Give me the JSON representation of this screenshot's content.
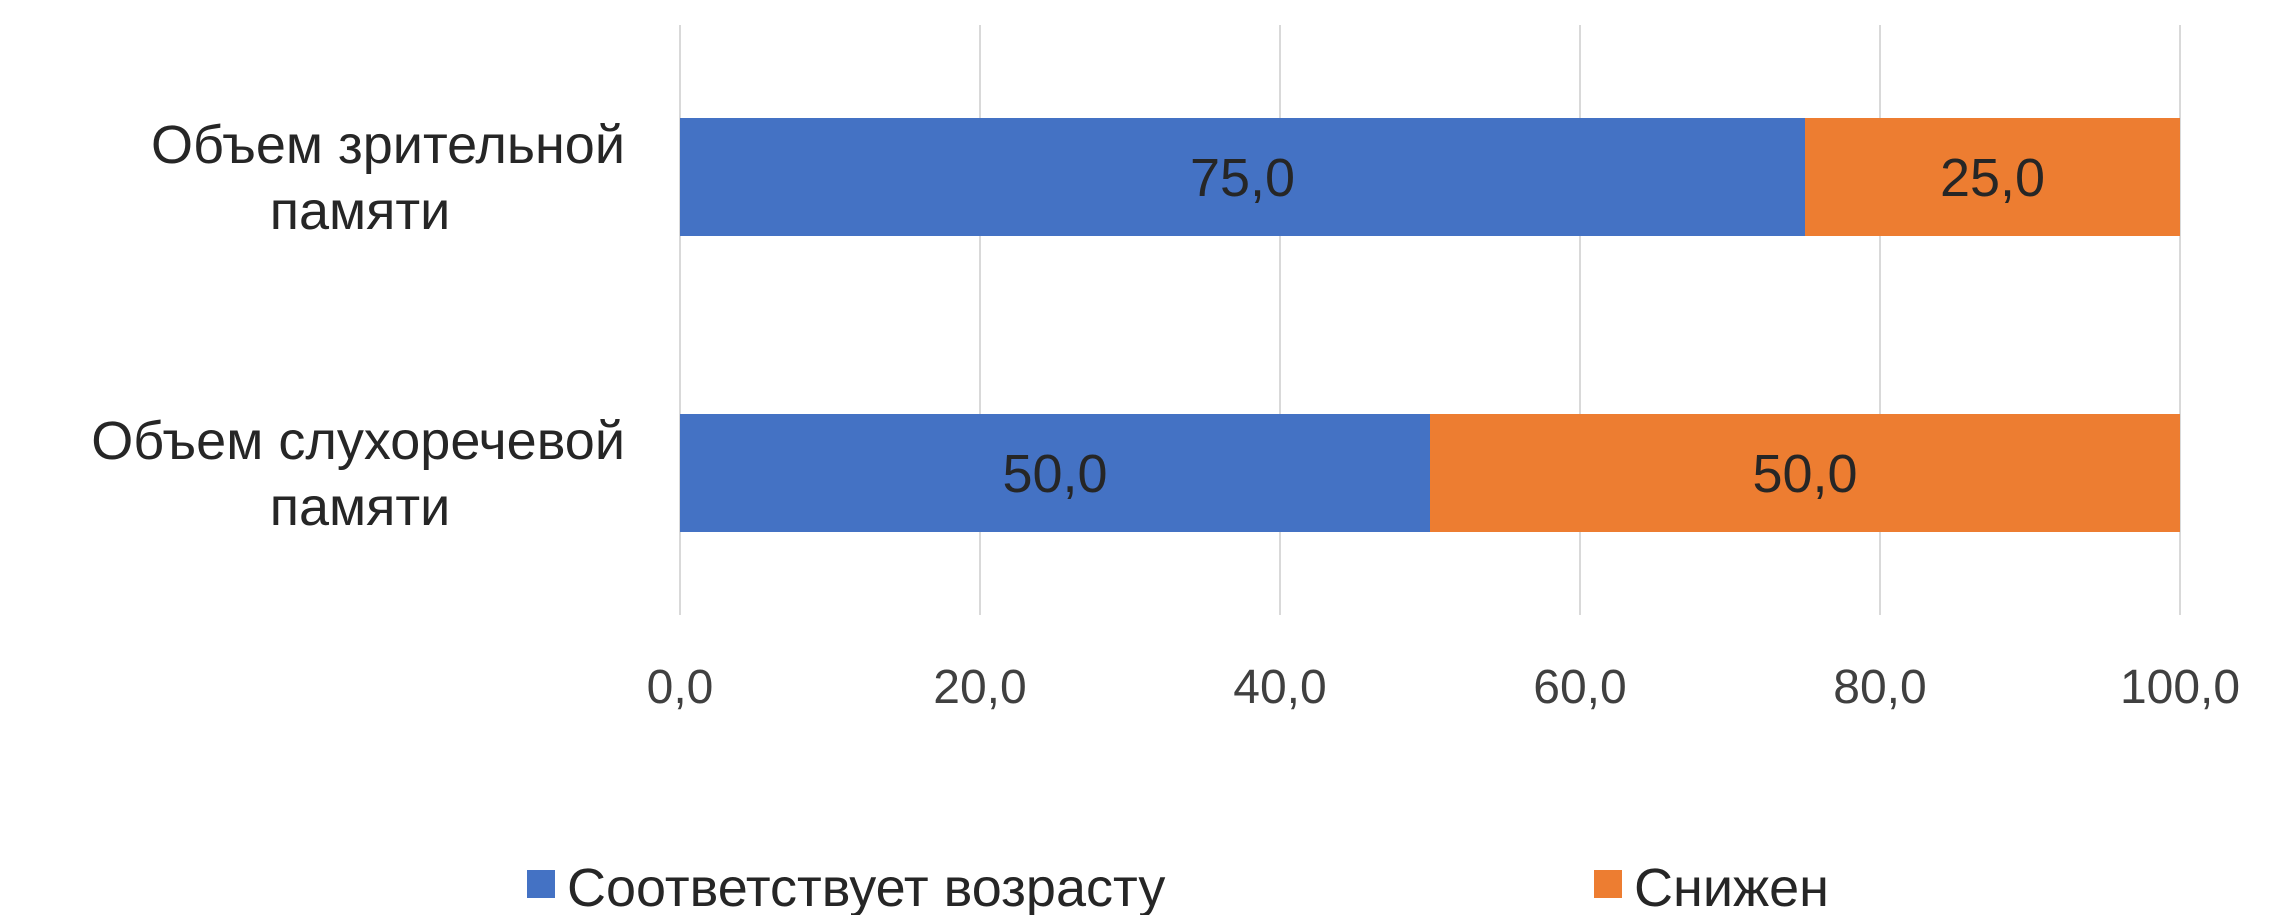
{
  "chart_data": {
    "type": "bar",
    "orientation": "horizontal",
    "stacked": true,
    "categories": [
      [
        "Объем зрительной",
        "памяти"
      ],
      [
        "Объем слухоречевой",
        "памяти"
      ]
    ],
    "series": [
      {
        "name": "Соответствует возрасту",
        "values": [
          75.0,
          50.0
        ],
        "labels": [
          "75,0",
          "50,0"
        ],
        "color": "#4472C4"
      },
      {
        "name": "Снижен",
        "values": [
          25.0,
          50.0
        ],
        "labels": [
          "25,0",
          "50,0"
        ],
        "color": "#ED7D31"
      }
    ],
    "xlim": [
      0,
      100
    ],
    "xticks": [
      0,
      20,
      40,
      60,
      80,
      100
    ],
    "xtick_labels": [
      "0,0",
      "20,0",
      "40,0",
      "60,0",
      "80,0",
      "100,0"
    ],
    "grid": "vertical",
    "legend_position": "bottom",
    "gridline_color": "#D9D9D9"
  }
}
